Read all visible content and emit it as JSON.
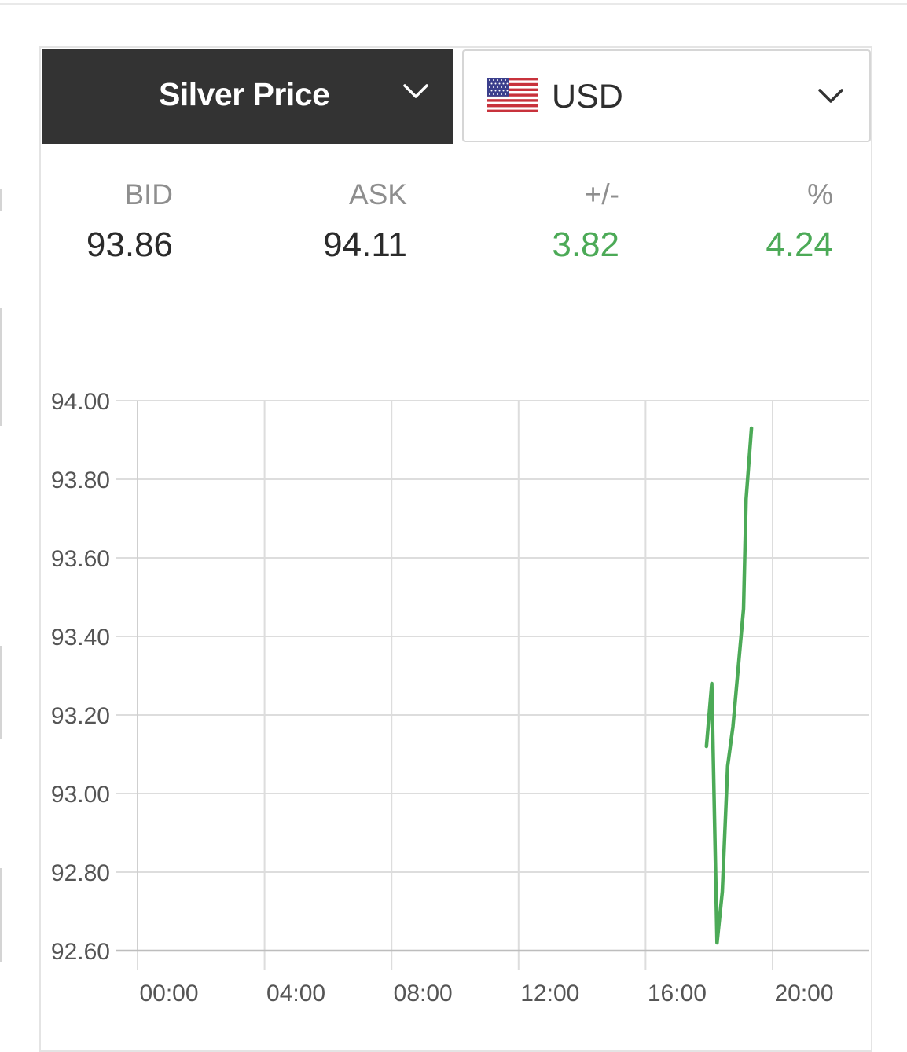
{
  "header": {
    "metal_label": "Silver Price",
    "currency_label": "USD",
    "metal_chevron_icon": "chevron-down-icon",
    "currency_chevron_icon": "chevron-down-icon",
    "flag_icon": "us-flag-icon"
  },
  "quote": {
    "bid_label": "BID",
    "bid_value": "93.86",
    "ask_label": "ASK",
    "ask_value": "94.11",
    "change_label": "+/-",
    "change_value": "3.82",
    "percent_label": "%",
    "percent_value": "4.24"
  },
  "colors": {
    "header_bg": "#333333",
    "positive": "#4caa57",
    "line": "#4caa57",
    "grid": "#dddddd",
    "axis_text": "#555555"
  },
  "chart_data": {
    "type": "line",
    "title": "",
    "xlabel": "",
    "ylabel": "",
    "grid": true,
    "x_ticks": [
      "00:00",
      "04:00",
      "08:00",
      "12:00",
      "16:00",
      "20:00"
    ],
    "y_ticks": [
      "94.00",
      "93.80",
      "93.60",
      "93.40",
      "93.20",
      "93.00",
      "92.80",
      "92.60"
    ],
    "xlim_hours": [
      0,
      23
    ],
    "ylim": [
      92.6,
      94.0
    ],
    "series": [
      {
        "name": "",
        "points": [
          {
            "x": "17:55",
            "y": 93.12
          },
          {
            "x": "18:05",
            "y": 93.28
          },
          {
            "x": "18:15",
            "y": 92.62
          },
          {
            "x": "18:25",
            "y": 92.75
          },
          {
            "x": "18:35",
            "y": 93.07
          },
          {
            "x": "18:45",
            "y": 93.17
          },
          {
            "x": "19:05",
            "y": 93.47
          },
          {
            "x": "19:10",
            "y": 93.75
          },
          {
            "x": "19:20",
            "y": 93.93
          }
        ]
      }
    ]
  }
}
